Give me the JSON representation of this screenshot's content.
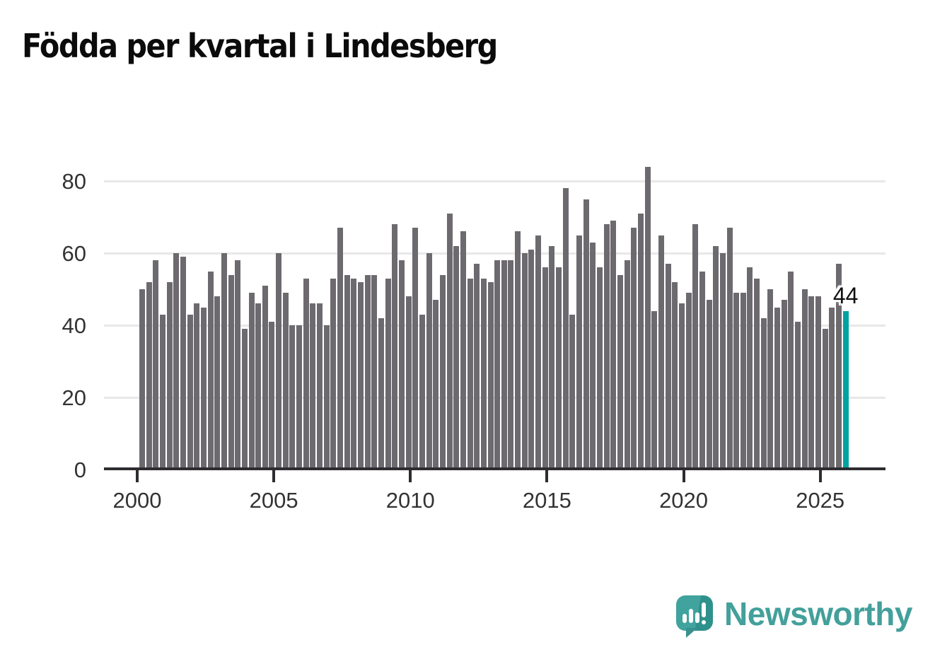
{
  "title": "Födda per kvartal i Lindesberg",
  "chart_data": {
    "type": "bar",
    "title": "Födda per kvartal i Lindesberg",
    "frequency": "quarterly",
    "start_period": "2000-Q1",
    "end_period": "2025-Q4",
    "x_tick_labels": [
      "2000",
      "2005",
      "2010",
      "2015",
      "2020",
      "2025"
    ],
    "y_ticks": [
      0,
      20,
      40,
      60,
      80
    ],
    "ylim": [
      0,
      87
    ],
    "grid": "horizontal",
    "legend_position": "none",
    "values": [
      50,
      52,
      58,
      43,
      52,
      60,
      59,
      43,
      46,
      45,
      55,
      48,
      60,
      54,
      58,
      39,
      49,
      46,
      51,
      41,
      60,
      49,
      40,
      40,
      53,
      46,
      46,
      40,
      53,
      67,
      54,
      53,
      52,
      54,
      54,
      42,
      53,
      68,
      58,
      48,
      67,
      43,
      60,
      47,
      54,
      71,
      62,
      66,
      53,
      57,
      53,
      52,
      58,
      58,
      58,
      66,
      60,
      61,
      65,
      56,
      62,
      56,
      78,
      43,
      65,
      75,
      63,
      56,
      68,
      69,
      54,
      58,
      67,
      71,
      84,
      44,
      65,
      57,
      52,
      46,
      49,
      68,
      55,
      47,
      62,
      60,
      67,
      49,
      49,
      56,
      53,
      42,
      50,
      45,
      47,
      55,
      41,
      50,
      48,
      48,
      39,
      45,
      57,
      44
    ],
    "highlight_last": {
      "period": "2025-Q4",
      "value": 44,
      "label": "44"
    }
  },
  "colors": {
    "bar": "#6d6a6f",
    "highlight_bar": "#00a2a2",
    "gridline": "#e8e8e8",
    "axis": "#2e2c30",
    "axis_text": "#333333",
    "title_text": "#0b0b0b",
    "annotation_text": "#111111",
    "logo_teal": "#43a09b"
  },
  "logo": {
    "text": "Newsworthy",
    "icon": "newsworthy-chart-bubble-icon"
  }
}
